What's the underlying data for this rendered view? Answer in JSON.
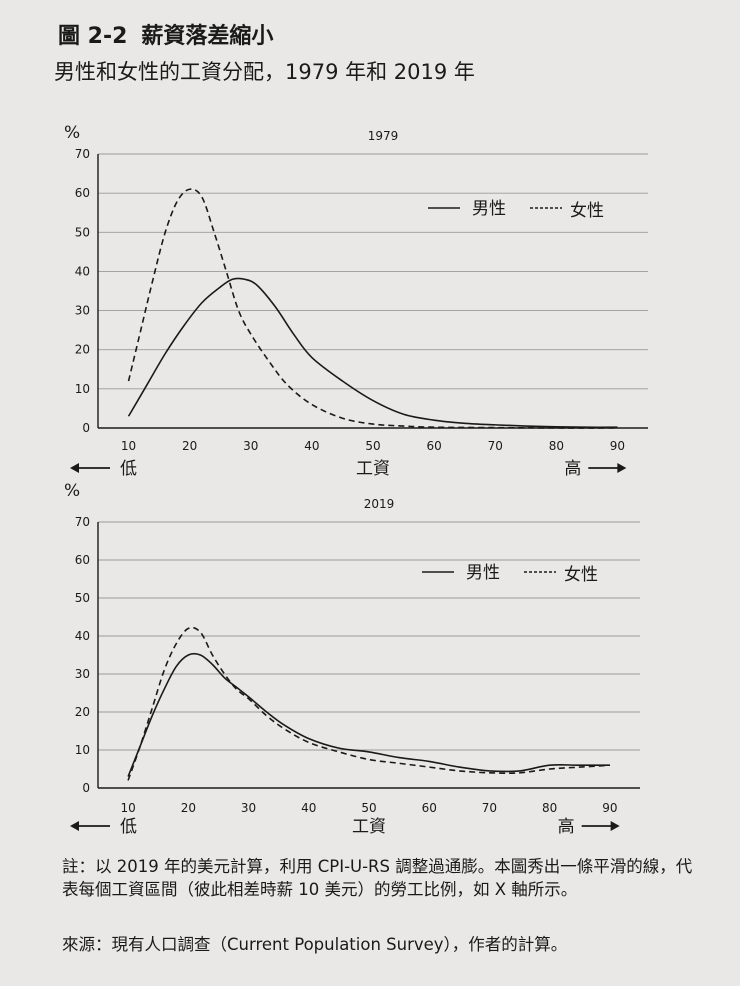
{
  "figure": {
    "number": "圖 2-2",
    "title": "薪資落差縮小",
    "subtitle": "男性和女性的工資分配，1979 年和 2019 年"
  },
  "chart_data": [
    {
      "type": "line",
      "title": "1979",
      "ylabel": "%",
      "xlabel": "工資",
      "x_low_label": "低",
      "x_high_label": "高",
      "ylim": [
        0,
        70
      ],
      "xlim": [
        5,
        95
      ],
      "yticks": [
        0,
        10,
        20,
        30,
        40,
        50,
        60,
        70
      ],
      "xticks": [
        10,
        20,
        30,
        40,
        50,
        60,
        70,
        80,
        90
      ],
      "grid": true,
      "legend_position": "top-right",
      "series": [
        {
          "name": "男性",
          "style": "solid",
          "x": [
            10,
            13,
            16,
            19,
            22,
            25,
            27,
            29,
            31,
            34,
            37,
            40,
            45,
            50,
            55,
            60,
            65,
            70,
            75,
            80,
            85,
            90
          ],
          "y": [
            3,
            11,
            19,
            26,
            32,
            36,
            38,
            38,
            36.5,
            31,
            24,
            18,
            12,
            7,
            3.5,
            2,
            1.2,
            0.8,
            0.5,
            0.3,
            0.2,
            0.2
          ]
        },
        {
          "name": "女性",
          "style": "dashed",
          "x": [
            10,
            12,
            14,
            16,
            18,
            20,
            22,
            24,
            26,
            28,
            30,
            33,
            36,
            40,
            45,
            50,
            55,
            60,
            70,
            80,
            90
          ],
          "y": [
            12,
            25,
            38,
            50,
            58,
            61,
            59,
            50,
            40,
            30,
            24,
            17,
            11,
            6,
            2.5,
            1,
            0.5,
            0.2,
            0.1,
            0,
            0
          ]
        }
      ]
    },
    {
      "type": "line",
      "title": "2019",
      "ylabel": "%",
      "xlabel": "工資",
      "x_low_label": "低",
      "x_high_label": "高",
      "ylim": [
        0,
        70
      ],
      "xlim": [
        5,
        95
      ],
      "yticks": [
        0,
        10,
        20,
        30,
        40,
        50,
        60,
        70
      ],
      "xticks": [
        10,
        20,
        30,
        40,
        50,
        60,
        70,
        80,
        90
      ],
      "grid": true,
      "legend_position": "top-right",
      "series": [
        {
          "name": "男性",
          "style": "solid",
          "x": [
            10,
            12,
            14,
            16,
            18,
            20,
            22,
            24,
            26,
            28,
            30,
            33,
            36,
            40,
            45,
            50,
            55,
            60,
            65,
            70,
            75,
            80,
            85,
            90
          ],
          "y": [
            3,
            11,
            19,
            26,
            32,
            35,
            35,
            32.5,
            29,
            26.5,
            24,
            20,
            16.5,
            13,
            10.5,
            9.5,
            8,
            7,
            5.5,
            4.5,
            4.5,
            6,
            6,
            6
          ]
        },
        {
          "name": "女性",
          "style": "dashed",
          "x": [
            10,
            12,
            14,
            16,
            18,
            20,
            22,
            24,
            26,
            28,
            30,
            33,
            36,
            40,
            45,
            50,
            55,
            60,
            65,
            70,
            75,
            80,
            85,
            90
          ],
          "y": [
            2,
            11,
            21,
            31,
            38,
            42,
            41,
            35,
            30,
            26,
            23.5,
            19,
            15.5,
            12,
            9.5,
            7.5,
            6.5,
            5.5,
            4.5,
            4,
            4,
            5,
            5.5,
            6
          ]
        }
      ]
    }
  ],
  "notes": {
    "note": "註：以 2019 年的美元計算，利用 CPI-U-RS 調整過通膨。本圖秀出一條平滑的線，代表每個工資區間（彼此相差時薪 10 美元）的勞工比例，如 X 軸所示。",
    "source": "來源：現有人口調查（Current Population Survey），作者的計算。"
  },
  "colors": {
    "line": "#1a1a1a",
    "grid": "#9a9a9a"
  }
}
